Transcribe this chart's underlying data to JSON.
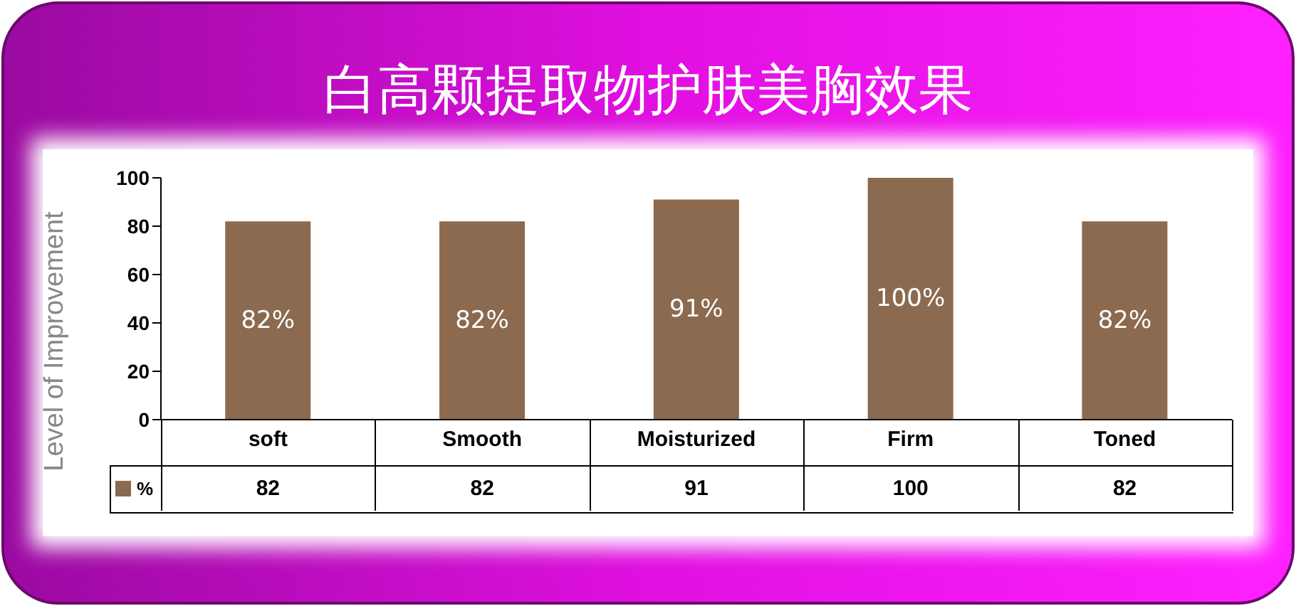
{
  "chart_data": {
    "type": "bar",
    "title": "白高颗提取物护肤美胸效果",
    "ylabel": "Level of Improvement",
    "categories": [
      "soft",
      "Smooth",
      "Moisturized",
      "Firm",
      "Toned"
    ],
    "series": [
      {
        "name": "%",
        "color": "#8b6a4f",
        "values": [
          82,
          82,
          91,
          100,
          82
        ],
        "value_labels": [
          "82%",
          "82%",
          "91%",
          "100%",
          "82%"
        ]
      }
    ],
    "ylim": [
      0,
      100
    ],
    "yticks": [
      0,
      20,
      40,
      60,
      80,
      100
    ],
    "grid": false,
    "annotations": [
      "82",
      "82",
      "91",
      "100",
      "82"
    ]
  }
}
